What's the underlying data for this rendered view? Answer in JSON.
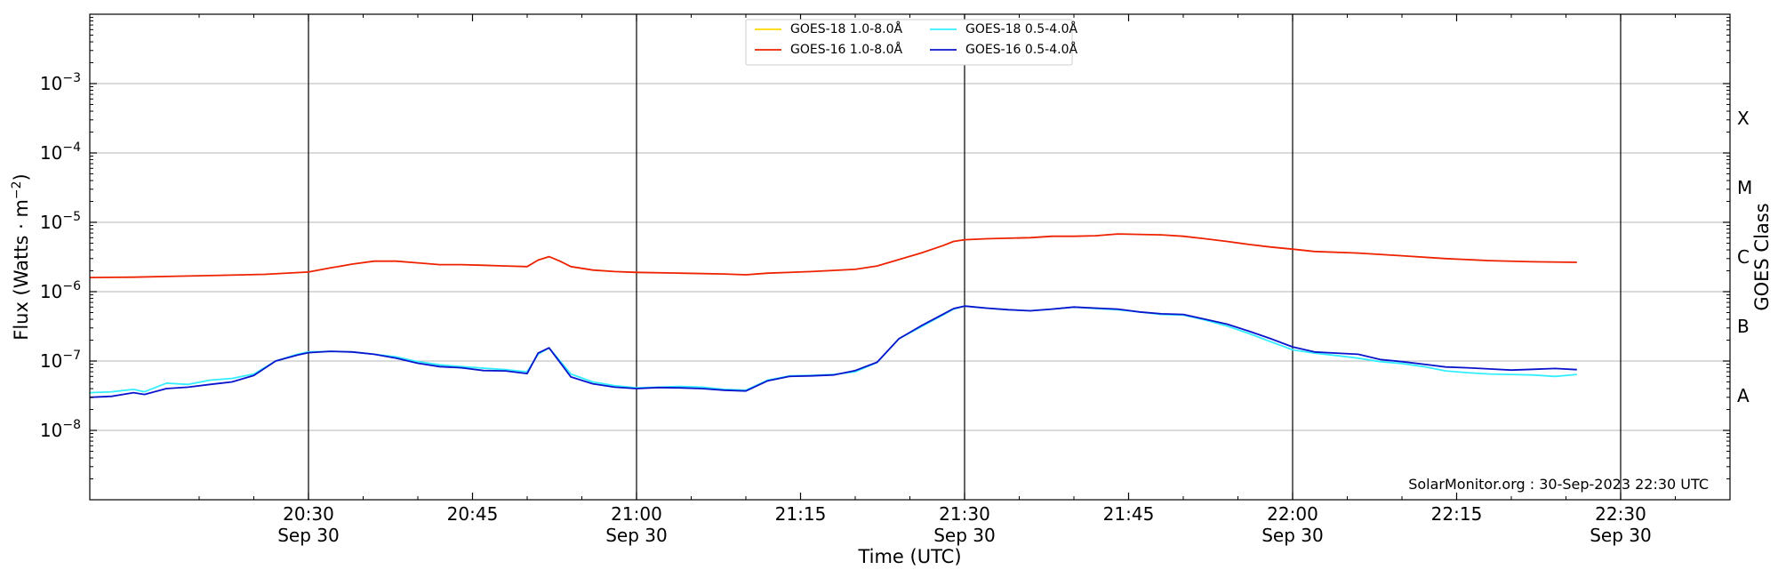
{
  "chart_data": {
    "type": "line",
    "xlabel": "Time (UTC)",
    "ylabel_main": "Flux (Watts · m",
    "ylabel_sup": "−2",
    "ylabel_close": ")",
    "y2label": "GOES Class",
    "credit": "SolarMonitor.org : 30-Sep-2023 22:30 UTC",
    "y_scale": "log",
    "xlim": [
      "20:10",
      "22:40"
    ],
    "ylim": [
      1e-09,
      0.01
    ],
    "grid": "horizontal at decades; vertical at half hours",
    "legend_position": "top-center",
    "x_ticks": [
      {
        "time": "20:30",
        "line1": "20:30",
        "line2": "Sep 30"
      },
      {
        "time": "20:45",
        "line1": "20:45",
        "line2": ""
      },
      {
        "time": "21:00",
        "line1": "21:00",
        "line2": "Sep 30"
      },
      {
        "time": "21:15",
        "line1": "21:15",
        "line2": ""
      },
      {
        "time": "21:30",
        "line1": "21:30",
        "line2": "Sep 30"
      },
      {
        "time": "21:45",
        "line1": "21:45",
        "line2": ""
      },
      {
        "time": "22:00",
        "line1": "22:00",
        "line2": "Sep 30"
      },
      {
        "time": "22:15",
        "line1": "22:15",
        "line2": ""
      },
      {
        "time": "22:30",
        "line1": "22:30",
        "line2": "Sep 30"
      }
    ],
    "y_ticks": [
      {
        "value": 0.001,
        "mant": "10",
        "exp": "−3"
      },
      {
        "value": 0.0001,
        "mant": "10",
        "exp": "−4"
      },
      {
        "value": 1e-05,
        "mant": "10",
        "exp": "−5"
      },
      {
        "value": 1e-06,
        "mant": "10",
        "exp": "−6"
      },
      {
        "value": 1e-07,
        "mant": "10",
        "exp": "−7"
      },
      {
        "value": 1e-08,
        "mant": "10",
        "exp": "−8"
      }
    ],
    "goes_classes": [
      {
        "label": "X",
        "value": 0.000316
      },
      {
        "label": "M",
        "value": 3.16e-05
      },
      {
        "label": "C",
        "value": 3.16e-06
      },
      {
        "label": "B",
        "value": 3.16e-07
      },
      {
        "label": "A",
        "value": 3.16e-08
      }
    ],
    "series": [
      {
        "name": "GOES-18 1.0-8.0Å",
        "color": "#ffd700",
        "times": [],
        "values": []
      },
      {
        "name": "GOES-16 1.0-8.0Å",
        "color": "#ee2200",
        "times": [
          "20:10",
          "20:14",
          "20:18",
          "20:22",
          "20:26",
          "20:30",
          "20:32",
          "20:34",
          "20:36",
          "20:38",
          "20:40",
          "20:42",
          "20:44",
          "20:46",
          "20:48",
          "20:50",
          "20:51",
          "20:52",
          "20:53",
          "20:54",
          "20:56",
          "20:58",
          "21:00",
          "21:04",
          "21:08",
          "21:10",
          "21:12",
          "21:16",
          "21:20",
          "21:22",
          "21:24",
          "21:26",
          "21:28",
          "21:29",
          "21:30",
          "21:32",
          "21:34",
          "21:36",
          "21:38",
          "21:40",
          "21:42",
          "21:44",
          "21:46",
          "21:48",
          "21:50",
          "21:52",
          "21:54",
          "21:56",
          "21:58",
          "22:00",
          "22:02",
          "22:06",
          "22:10",
          "22:14",
          "22:18",
          "22:22",
          "22:26"
        ],
        "values": [
          1.6e-06,
          1.62e-06,
          1.67e-06,
          1.72e-06,
          1.78e-06,
          1.92e-06,
          2.2e-06,
          2.5e-06,
          2.75e-06,
          2.75e-06,
          2.6e-06,
          2.45e-06,
          2.45e-06,
          2.4e-06,
          2.35e-06,
          2.3e-06,
          2.85e-06,
          3.2e-06,
          2.75e-06,
          2.3e-06,
          2.05e-06,
          1.95e-06,
          1.9e-06,
          1.85e-06,
          1.8e-06,
          1.75e-06,
          1.85e-06,
          1.95e-06,
          2.1e-06,
          2.35e-06,
          2.9e-06,
          3.6e-06,
          4.6e-06,
          5.3e-06,
          5.6e-06,
          5.8e-06,
          5.9e-06,
          6e-06,
          6.3e-06,
          6.3e-06,
          6.4e-06,
          6.8e-06,
          6.7e-06,
          6.6e-06,
          6.3e-06,
          5.8e-06,
          5.3e-06,
          4.8e-06,
          4.4e-06,
          4.1e-06,
          3.8e-06,
          3.6e-06,
          3.3e-06,
          3e-06,
          2.8e-06,
          2.7e-06,
          2.65e-06
        ]
      },
      {
        "name": "GOES-18 0.5-4.0Å",
        "color": "#33eeff",
        "times": [
          "20:10",
          "20:12",
          "20:14",
          "20:15",
          "20:17",
          "20:19",
          "20:21",
          "20:23",
          "20:25",
          "20:27",
          "20:29",
          "20:30",
          "20:32",
          "20:34",
          "20:36",
          "20:38",
          "20:40",
          "20:42",
          "20:44",
          "20:46",
          "20:48",
          "20:50",
          "20:51",
          "20:52",
          "20:54",
          "20:56",
          "20:58",
          "21:00",
          "21:02",
          "21:04",
          "21:06",
          "21:08",
          "21:10",
          "21:12",
          "21:14",
          "21:16",
          "21:18",
          "21:20",
          "21:22",
          "21:24",
          "21:26",
          "21:28",
          "21:29",
          "21:30",
          "21:32",
          "21:34",
          "21:36",
          "21:38",
          "21:40",
          "21:42",
          "21:44",
          "21:46",
          "21:48",
          "21:50",
          "21:52",
          "21:54",
          "21:56",
          "21:58",
          "22:00",
          "22:02",
          "22:04",
          "22:06",
          "22:08",
          "22:10",
          "22:12",
          "22:14",
          "22:16",
          "22:18",
          "22:20",
          "22:22",
          "22:24",
          "22:26"
        ],
        "values": [
          3.5e-08,
          3.6e-08,
          3.9e-08,
          3.6e-08,
          4.8e-08,
          4.6e-08,
          5.3e-08,
          5.6e-08,
          6.5e-08,
          1e-07,
          1.25e-07,
          1.35e-07,
          1.38e-07,
          1.35e-07,
          1.25e-07,
          1.15e-07,
          9.8e-08,
          8.8e-08,
          8.3e-08,
          7.9e-08,
          7.5e-08,
          7e-08,
          1.25e-07,
          1.55e-07,
          6.5e-08,
          5e-08,
          4.4e-08,
          4.1e-08,
          4.2e-08,
          4.3e-08,
          4.2e-08,
          3.9e-08,
          3.8e-08,
          5.3e-08,
          6.1e-08,
          6.2e-08,
          6.4e-08,
          7e-08,
          9.5e-08,
          2.1e-07,
          3.1e-07,
          4.6e-07,
          5.6e-07,
          6.2e-07,
          5.8e-07,
          5.5e-07,
          5.3e-07,
          5.6e-07,
          6e-07,
          5.7e-07,
          5.5e-07,
          5.1e-07,
          4.7e-07,
          4.6e-07,
          3.9e-07,
          3.2e-07,
          2.5e-07,
          1.9e-07,
          1.45e-07,
          1.3e-07,
          1.2e-07,
          1.1e-07,
          9.8e-08,
          9.2e-08,
          8.3e-08,
          7.2e-08,
          6.8e-08,
          6.5e-08,
          6.4e-08,
          6.3e-08,
          6e-08,
          6.4e-08
        ]
      },
      {
        "name": "GOES-16 0.5-4.0Å",
        "color": "#0a14cc",
        "times": [
          "20:10",
          "20:12",
          "20:14",
          "20:15",
          "20:17",
          "20:19",
          "20:21",
          "20:23",
          "20:25",
          "20:27",
          "20:29",
          "20:30",
          "20:32",
          "20:34",
          "20:36",
          "20:38",
          "20:40",
          "20:42",
          "20:44",
          "20:46",
          "20:48",
          "20:50",
          "20:51",
          "20:52",
          "20:54",
          "20:56",
          "20:58",
          "21:00",
          "21:02",
          "21:04",
          "21:06",
          "21:08",
          "21:10",
          "21:12",
          "21:14",
          "21:16",
          "21:18",
          "21:20",
          "21:22",
          "21:24",
          "21:26",
          "21:28",
          "21:29",
          "21:30",
          "21:32",
          "21:34",
          "21:36",
          "21:38",
          "21:40",
          "21:42",
          "21:44",
          "21:46",
          "21:48",
          "21:50",
          "21:52",
          "21:54",
          "21:56",
          "21:58",
          "22:00",
          "22:02",
          "22:04",
          "22:06",
          "22:08",
          "22:10",
          "22:12",
          "22:14",
          "22:16",
          "22:18",
          "22:20",
          "22:22",
          "22:24",
          "22:26"
        ],
        "values": [
          3e-08,
          3.1e-08,
          3.5e-08,
          3.3e-08,
          4e-08,
          4.2e-08,
          4.6e-08,
          5e-08,
          6.2e-08,
          1e-07,
          1.22e-07,
          1.32e-07,
          1.38e-07,
          1.35e-07,
          1.25e-07,
          1.1e-07,
          9.3e-08,
          8.3e-08,
          8e-08,
          7.3e-08,
          7.2e-08,
          6.6e-08,
          1.3e-07,
          1.55e-07,
          5.9e-08,
          4.7e-08,
          4.2e-08,
          4e-08,
          4.15e-08,
          4.1e-08,
          4e-08,
          3.8e-08,
          3.7e-08,
          5.2e-08,
          6e-08,
          6.1e-08,
          6.3e-08,
          7.3e-08,
          9.6e-08,
          2.1e-07,
          3.2e-07,
          4.7e-07,
          5.7e-07,
          6.2e-07,
          5.8e-07,
          5.5e-07,
          5.3e-07,
          5.6e-07,
          6e-07,
          5.8e-07,
          5.6e-07,
          5.1e-07,
          4.8e-07,
          4.7e-07,
          4e-07,
          3.4e-07,
          2.7e-07,
          2.1e-07,
          1.6e-07,
          1.35e-07,
          1.3e-07,
          1.25e-07,
          1.05e-07,
          9.8e-08,
          9e-08,
          8.2e-08,
          8e-08,
          7.7e-08,
          7.4e-08,
          7.6e-08,
          7.8e-08,
          7.5e-08
        ]
      }
    ]
  }
}
